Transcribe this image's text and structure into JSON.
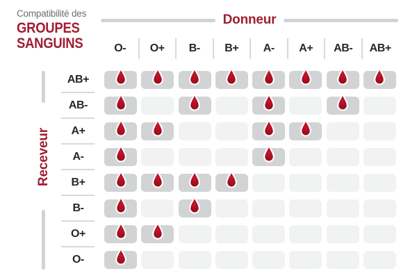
{
  "title": {
    "subtitle": "Compatibilité des",
    "line1": "GROUPES",
    "line2": "SANGUINS"
  },
  "axes": {
    "donor_label": "Donneur",
    "receiver_label": "Receveur"
  },
  "icons": {
    "compatible_cell": "blood-drop-icon"
  },
  "colors": {
    "accent_red": "#A01E31",
    "drop_red_center": "#C5162C",
    "drop_red_edge": "#8A0C1B",
    "cell_gray": "#D1D3D4",
    "cell_light": "#F1F2F2",
    "text_dark": "#29262A",
    "text_gray": "#6D6E71",
    "line_gray": "#D1D3D4"
  },
  "chart_data": {
    "type": "heatmap",
    "title": "Compatibilité des GROUPES SANGUINS",
    "xlabel": "Donneur",
    "ylabel": "Receveur",
    "columns": [
      "O-",
      "O+",
      "B-",
      "B+",
      "A-",
      "A+",
      "AB-",
      "AB+"
    ],
    "rows": [
      "AB+",
      "AB-",
      "A+",
      "A-",
      "B+",
      "B-",
      "O+",
      "O-"
    ],
    "matrix": [
      [
        1,
        1,
        1,
        1,
        1,
        1,
        1,
        1
      ],
      [
        1,
        0,
        1,
        0,
        1,
        0,
        1,
        0
      ],
      [
        1,
        1,
        0,
        0,
        1,
        1,
        0,
        0
      ],
      [
        1,
        0,
        0,
        0,
        1,
        0,
        0,
        0
      ],
      [
        1,
        1,
        1,
        1,
        0,
        0,
        0,
        0
      ],
      [
        1,
        0,
        1,
        0,
        0,
        0,
        0,
        0
      ],
      [
        1,
        1,
        0,
        0,
        0,
        0,
        0,
        0
      ],
      [
        1,
        0,
        0,
        0,
        0,
        0,
        0,
        0
      ]
    ]
  }
}
